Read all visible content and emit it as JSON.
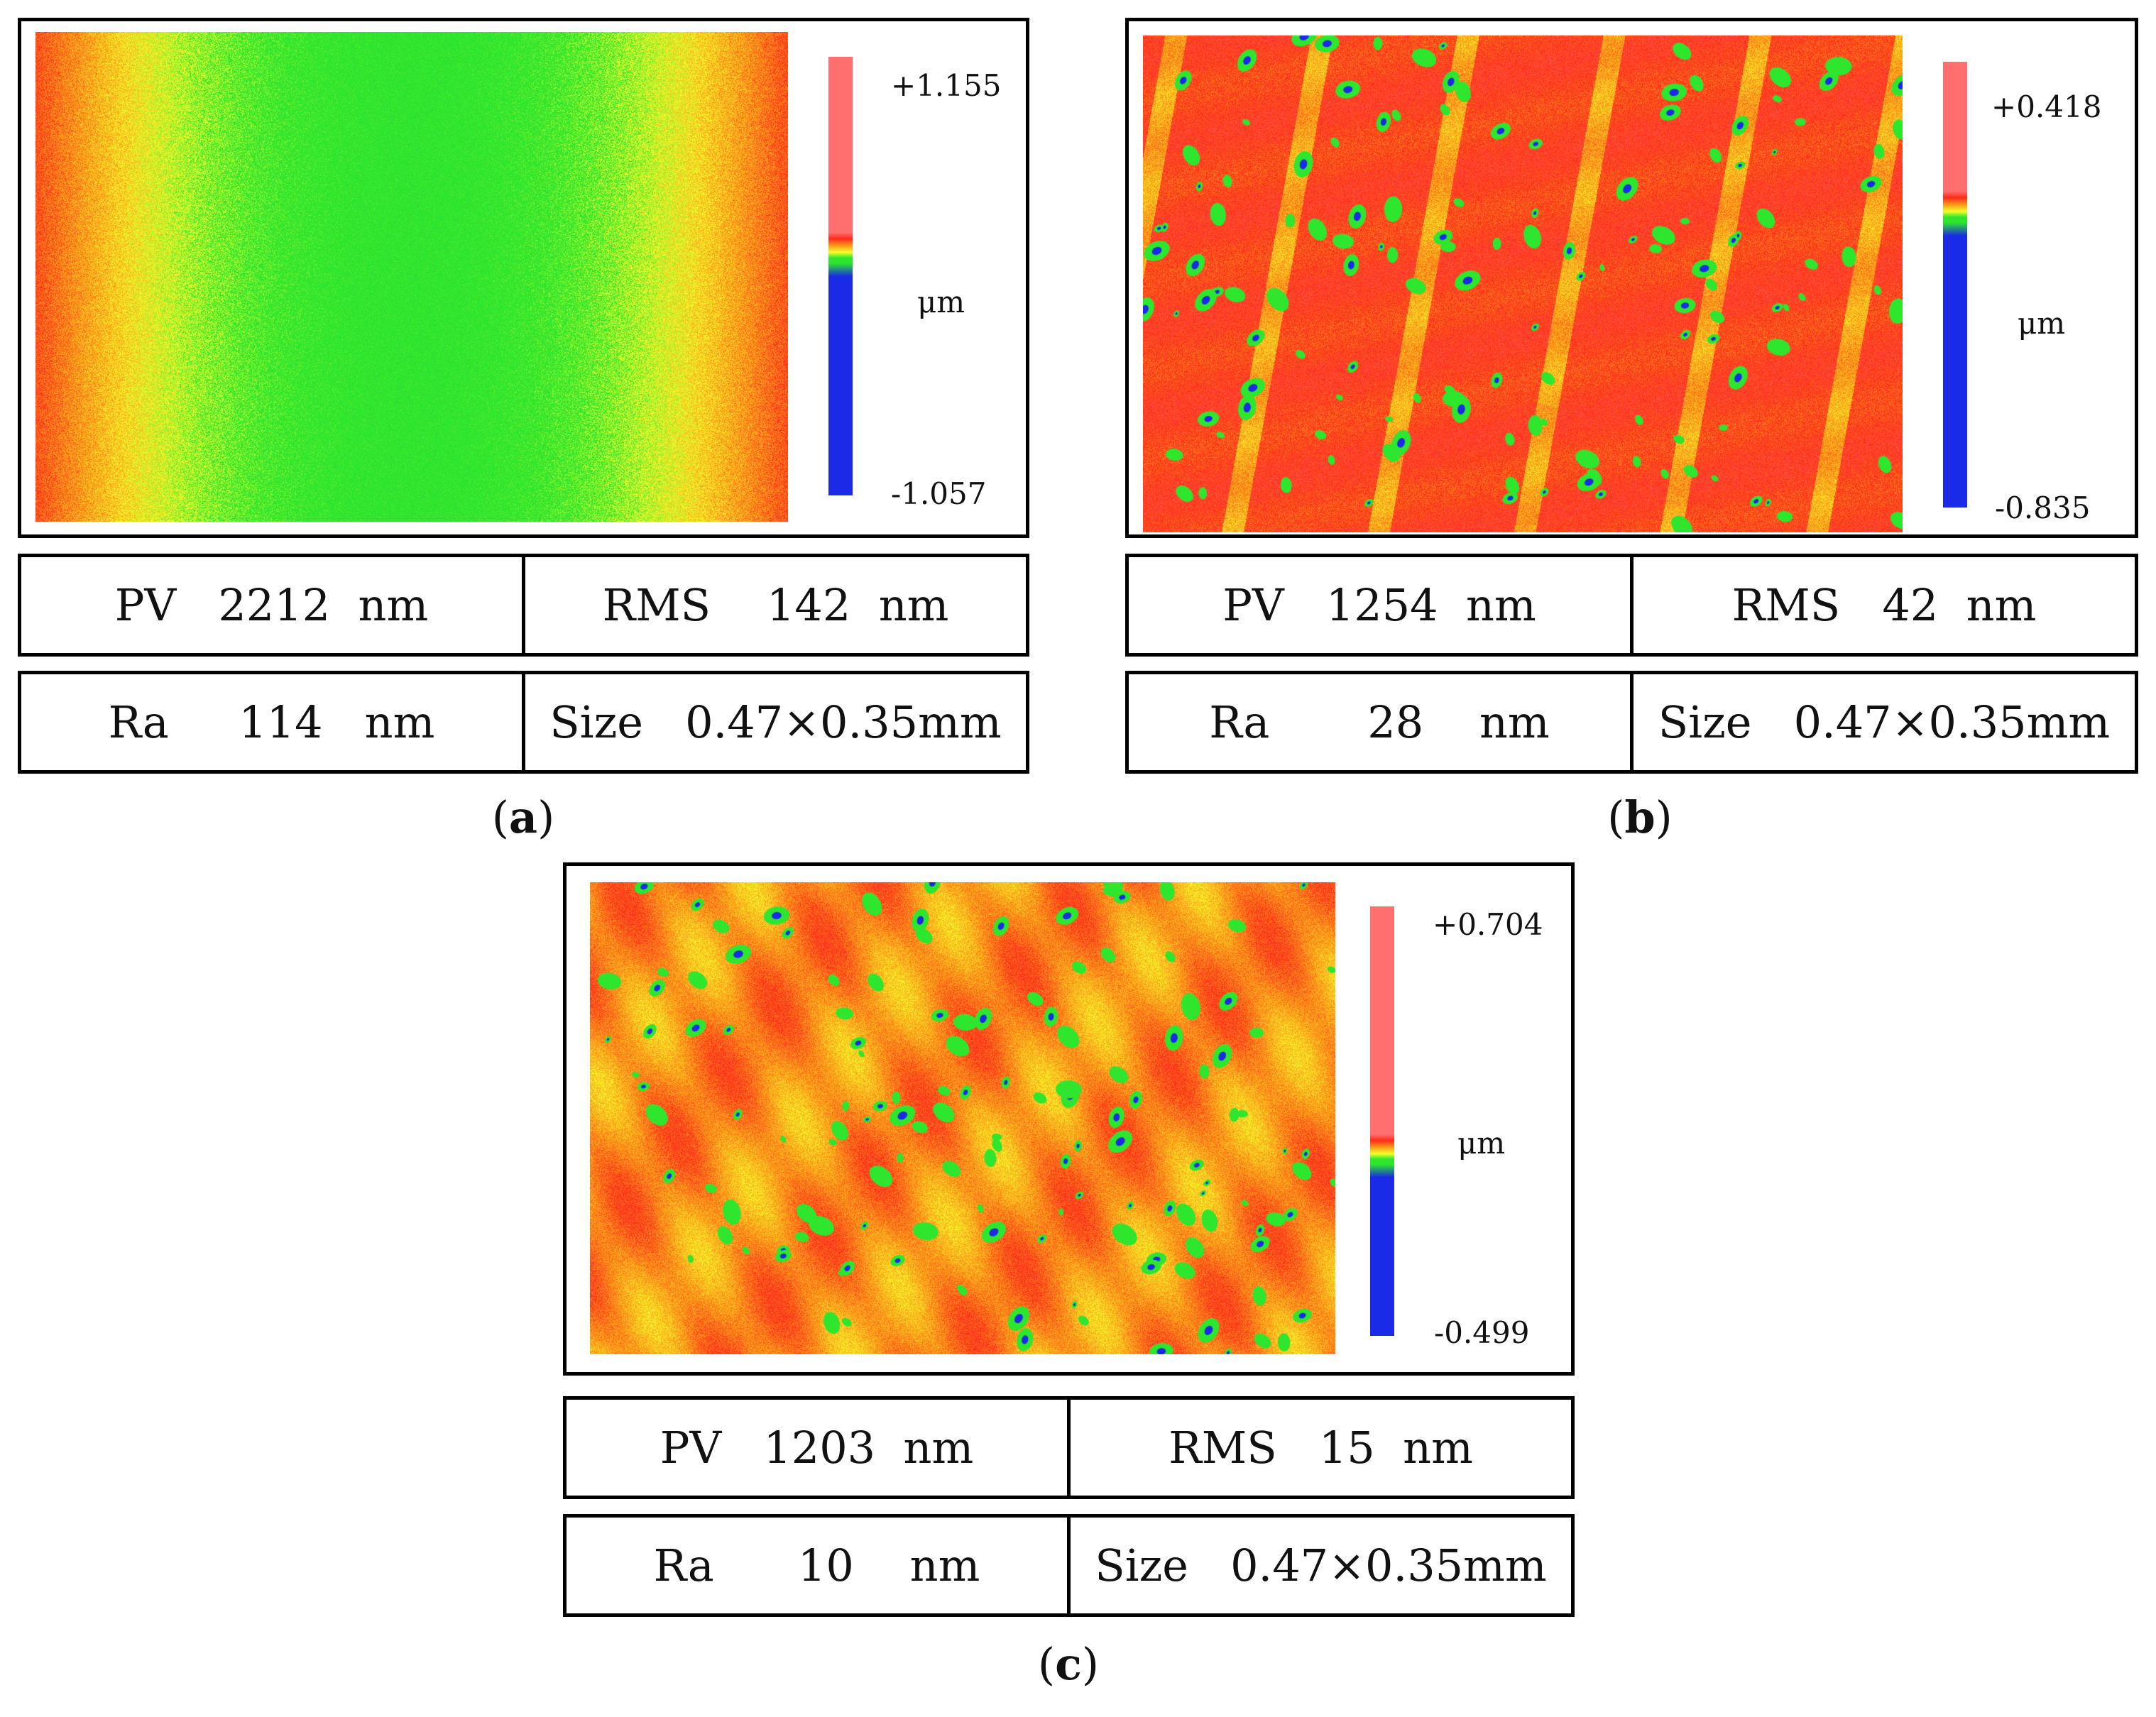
{
  "panels": [
    {
      "id": "a",
      "caption_letter": "a",
      "colorbar": {
        "max": "+1.155",
        "unit": "μm",
        "min": "-1.057"
      },
      "pattern": "vertical-band",
      "stats": {
        "pv": "PV   2212  nm",
        "rms": "RMS    142  nm",
        "ra": "Ra     114   nm",
        "size": "Size   0.47×0.35mm"
      }
    },
    {
      "id": "b",
      "caption_letter": "b",
      "colorbar": {
        "max": "+0.418",
        "unit": "μm",
        "min": "-0.835"
      },
      "pattern": "diagonal-stripes",
      "stats": {
        "pv": "PV   1254  nm",
        "rms": "RMS   42  nm",
        "ra": "Ra       28    nm",
        "size": "Size   0.47×0.35mm"
      }
    },
    {
      "id": "c",
      "caption_letter": "c",
      "colorbar": {
        "max": "+0.704",
        "unit": "μm",
        "min": "-0.499"
      },
      "pattern": "blotchy",
      "stats": {
        "pv": "PV   1203  nm",
        "rms": "RMS   15  nm",
        "ra": "Ra      10    nm",
        "size": "Size   0.47×0.35mm"
      }
    }
  ],
  "colors": {
    "red": "#ff2a1a",
    "orange": "#ff9a1a",
    "yellow": "#f2ff2a",
    "green": "#2ee62e",
    "blue": "#1a2ae6",
    "pink": "#ff6f6f"
  }
}
